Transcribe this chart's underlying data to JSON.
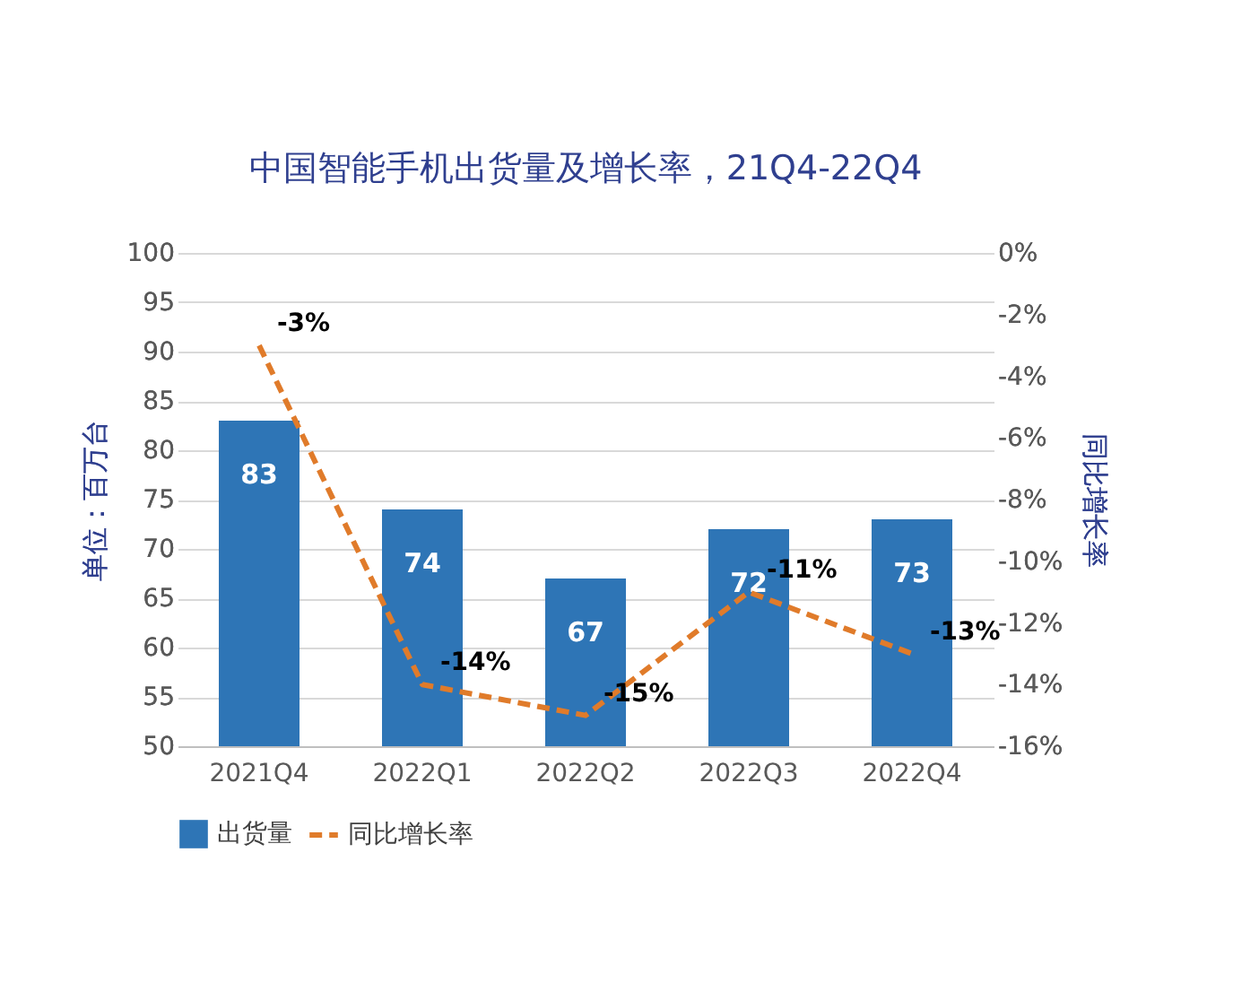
{
  "chart_data": {
    "type": "bar",
    "title": "中国智能手机出货量及增长率，21Q4-22Q4",
    "categories": [
      "2021Q4",
      "2022Q1",
      "2022Q2",
      "2022Q3",
      "2022Q4"
    ],
    "series": [
      {
        "name": "出货量",
        "color": "#2e75b6",
        "values": [
          83,
          74,
          67,
          72,
          73
        ],
        "value_labels": [
          "83",
          "74",
          "67",
          "72",
          "73"
        ]
      },
      {
        "name": "同比增长率",
        "type": "line",
        "axis": "y2",
        "color": "#e07b2a",
        "line_style": "dashed",
        "values": [
          -3,
          -14,
          -15,
          -11,
          -13
        ],
        "value_labels": [
          "-3%",
          "-14%",
          "-15%",
          "-11%",
          "-13%"
        ]
      }
    ],
    "ylabel": "单位：百万台",
    "y2label": "同比增长率",
    "ylim": [
      50,
      100
    ],
    "yticks": [
      50,
      55,
      60,
      65,
      70,
      75,
      80,
      85,
      90,
      95,
      100
    ],
    "y2lim": [
      -16,
      0
    ],
    "y2ticks": [
      {
        "value": -16,
        "label": "-16%"
      },
      {
        "value": -14,
        "label": "-14%"
      },
      {
        "value": -12,
        "label": "-12%"
      },
      {
        "value": -10,
        "label": "-10%"
      },
      {
        "value": -8,
        "label": "-8%"
      },
      {
        "value": -6,
        "label": "-6%"
      },
      {
        "value": -4,
        "label": "-4%"
      },
      {
        "value": -2,
        "label": "-2%"
      },
      {
        "value": 0,
        "label": "0%"
      }
    ],
    "grid": "y",
    "legend": "bottom",
    "marker": "none"
  }
}
